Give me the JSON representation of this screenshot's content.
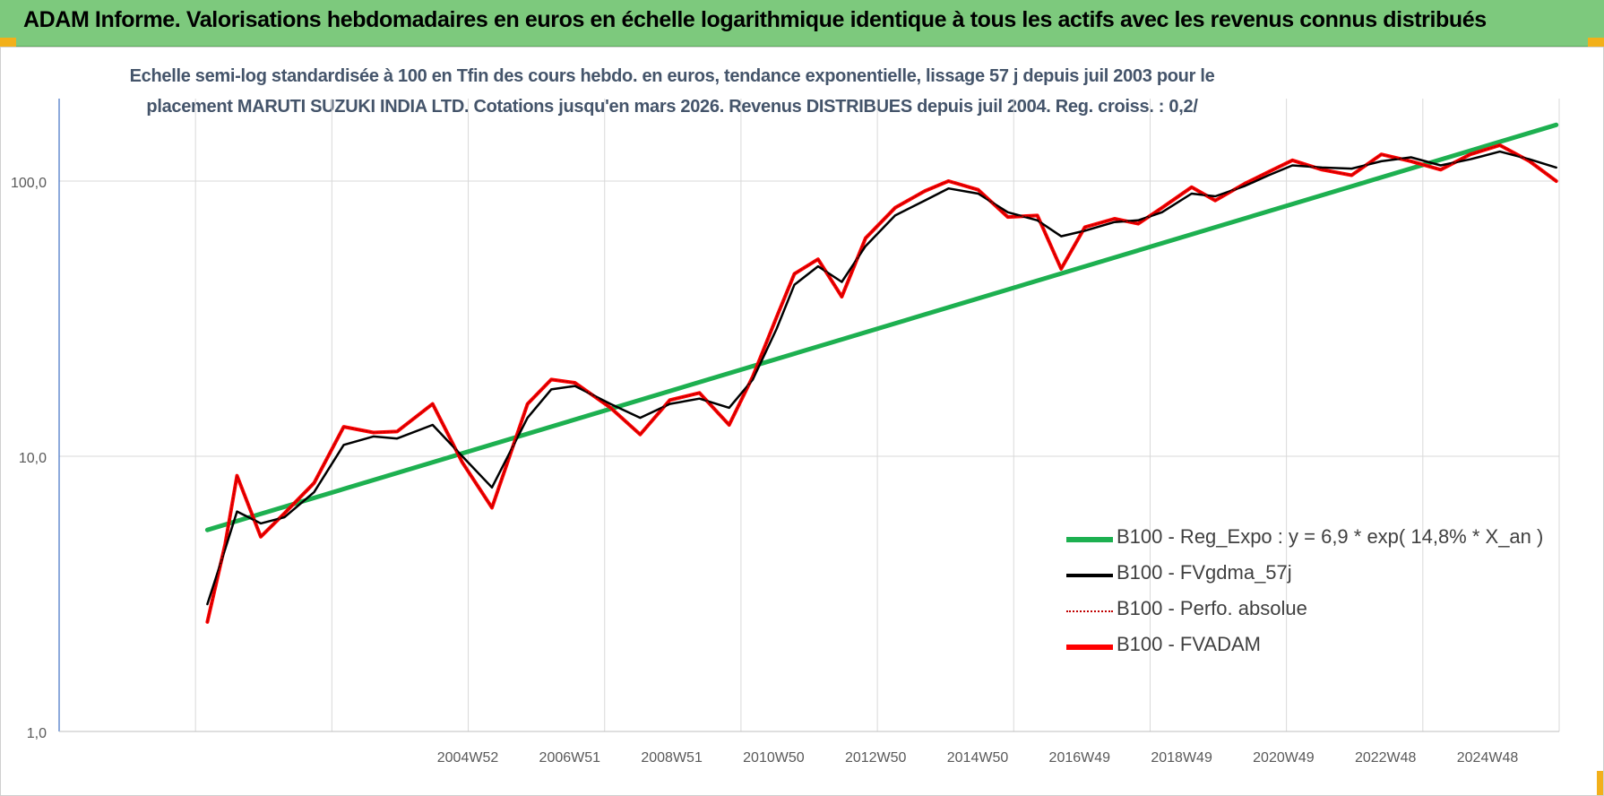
{
  "banner": {
    "title": "ADAM Informe. Valorisations hebdomadaires en euros en échelle logarithmique identique à tous les actifs avec les revenus connus distribués"
  },
  "chart_data": {
    "type": "line",
    "title_line1": "Echelle semi-log standardisée à 100 en Tfin des cours hebdo. en euros, tendance exponentielle, lissage 57 j depuis juil 2003 pour le",
    "title_line2": "placement MARUTI SUZUKI INDIA LTD. Cotations jusqu'en mars 2026.  Revenus DISTRIBUES depuis juil 2004.  Reg. croiss. : 0,2/",
    "y_scale": "log",
    "ylim": [
      1,
      180
    ],
    "y_ticks": [
      "1,0",
      "10,0",
      "100,0"
    ],
    "x_ticks": [
      "2004W52",
      "2006W51",
      "2008W51",
      "2010W50",
      "2012W50",
      "2014W50",
      "2016W49",
      "2018W49",
      "2020W49",
      "2022W48",
      "2024W48"
    ],
    "x_range": [
      2001.0,
      2026.3
    ],
    "grid": true,
    "legend_position": "right",
    "series": [
      {
        "name": "B100 - Reg_Expo : y = 6,9 * exp( 14,8% *  X_an )",
        "color": "#1db050",
        "x": [
          2003.5,
          2026.25
        ],
        "y": [
          5.4,
          160
        ]
      },
      {
        "name": "B100 - FVgdma_57j",
        "color": "#000000",
        "x": [
          2003.5,
          2003.8,
          2004.0,
          2004.4,
          2004.8,
          2005.3,
          2005.8,
          2006.3,
          2006.7,
          2007.3,
          2007.8,
          2008.3,
          2008.9,
          2009.3,
          2009.7,
          2010.3,
          2010.8,
          2011.3,
          2011.8,
          2012.3,
          2012.7,
          2013.1,
          2013.4,
          2013.8,
          2014.2,
          2014.6,
          2015.1,
          2015.6,
          2016.0,
          2016.5,
          2017.0,
          2017.5,
          2017.9,
          2018.3,
          2018.8,
          2019.2,
          2019.6,
          2020.1,
          2020.5,
          2021.0,
          2021.4,
          2021.8,
          2022.3,
          2022.8,
          2023.3,
          2023.8,
          2024.3,
          2024.8,
          2025.3,
          2025.8,
          2026.25
        ],
        "y": [
          2.9,
          4.6,
          6.3,
          5.7,
          6.0,
          7.4,
          11.0,
          11.8,
          11.6,
          13.0,
          10.0,
          7.7,
          13.8,
          17.5,
          18.0,
          15.5,
          13.8,
          15.5,
          16.2,
          15.0,
          19.0,
          29.0,
          42.0,
          49.0,
          43.0,
          58.0,
          75.0,
          85.0,
          94.0,
          90.0,
          77.0,
          72.0,
          63.0,
          66.0,
          71.0,
          72.0,
          77.0,
          90.0,
          88.0,
          96.0,
          105.0,
          114.0,
          112.0,
          111.0,
          118.0,
          122.0,
          114.0,
          120.0,
          128.0,
          120.0,
          112.0
        ]
      },
      {
        "name": "B100 - Perfo. absolue",
        "color": "#c00000",
        "dotted": true,
        "x": [
          2003.5,
          2003.8,
          2004.0,
          2004.4,
          2004.8,
          2005.3,
          2005.8,
          2006.3,
          2006.7,
          2007.3,
          2007.8,
          2008.3,
          2008.9,
          2009.3,
          2009.7,
          2010.3,
          2010.8,
          2011.3,
          2011.8,
          2012.3,
          2012.7,
          2013.1,
          2013.4,
          2013.8,
          2014.2,
          2014.6,
          2015.1,
          2015.6,
          2016.0,
          2016.5,
          2017.0,
          2017.5,
          2017.9,
          2018.3,
          2018.8,
          2019.2,
          2019.6,
          2020.1,
          2020.5,
          2021.0,
          2021.4,
          2021.8,
          2022.3,
          2022.8,
          2023.3,
          2023.8,
          2024.3,
          2024.8,
          2025.3,
          2025.8,
          2026.25
        ],
        "y": [
          2.5,
          4.8,
          8.5,
          5.1,
          6.2,
          8.0,
          12.8,
          12.2,
          12.3,
          15.5,
          9.5,
          6.5,
          15.5,
          19.0,
          18.5,
          15.0,
          12.0,
          16.0,
          17.0,
          13.0,
          19.5,
          32.0,
          46.0,
          52.0,
          38.0,
          62.0,
          80.0,
          92.0,
          100.0,
          93.0,
          74.0,
          75.0,
          48.0,
          68.0,
          73.0,
          70.0,
          80.0,
          95.0,
          85.0,
          98.0,
          108.0,
          119.0,
          110.0,
          105.0,
          125.0,
          118.0,
          110.0,
          125.0,
          135.0,
          118.0,
          100.0
        ]
      },
      {
        "name": "B100 - FVADAM",
        "color": "#ff0000",
        "x": [
          2003.5,
          2003.8,
          2004.0,
          2004.4,
          2004.8,
          2005.3,
          2005.8,
          2006.3,
          2006.7,
          2007.3,
          2007.8,
          2008.3,
          2008.9,
          2009.3,
          2009.7,
          2010.3,
          2010.8,
          2011.3,
          2011.8,
          2012.3,
          2012.7,
          2013.1,
          2013.4,
          2013.8,
          2014.2,
          2014.6,
          2015.1,
          2015.6,
          2016.0,
          2016.5,
          2017.0,
          2017.5,
          2017.9,
          2018.3,
          2018.8,
          2019.2,
          2019.6,
          2020.1,
          2020.5,
          2021.0,
          2021.4,
          2021.8,
          2022.3,
          2022.8,
          2023.3,
          2023.8,
          2024.3,
          2024.8,
          2025.3,
          2025.8,
          2026.25
        ],
        "y": [
          2.5,
          4.8,
          8.5,
          5.1,
          6.2,
          8.0,
          12.8,
          12.2,
          12.3,
          15.5,
          9.5,
          6.5,
          15.5,
          19.0,
          18.5,
          15.0,
          12.0,
          16.0,
          17.0,
          13.0,
          19.5,
          32.0,
          46.0,
          52.0,
          38.0,
          62.0,
          80.0,
          92.0,
          100.0,
          93.0,
          74.0,
          75.0,
          48.0,
          68.0,
          73.0,
          70.0,
          80.0,
          95.0,
          85.0,
          98.0,
          108.0,
          119.0,
          110.0,
          105.0,
          125.0,
          118.0,
          110.0,
          125.0,
          135.0,
          118.0,
          100.0
        ]
      }
    ]
  }
}
